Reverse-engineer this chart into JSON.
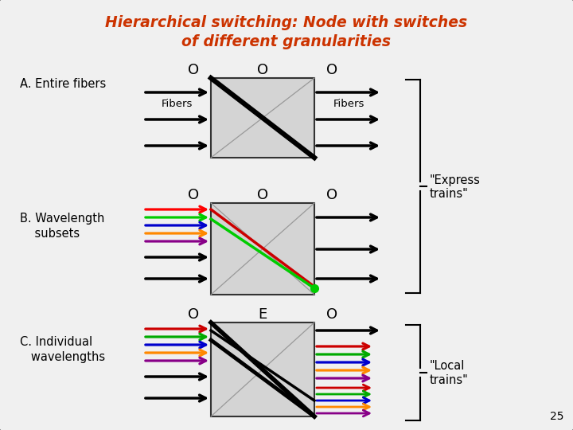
{
  "title_line1": "Hierarchical switching: Node with switches",
  "title_line2": "of different granularities",
  "title_color": "#cc3300",
  "bg_color": "#f0f0f0",
  "border_color": "#444444",
  "box_fill": "#d4d4d4",
  "box_border": "#333333",
  "section_A_label": "A. Entire fibers",
  "section_B_label_1": "B. Wavelength",
  "section_B_label_2": "    subsets",
  "section_C_label_1": "C. Individual",
  "section_C_label_2": "   wavelengths",
  "express_label_1": "\"Express",
  "express_label_2": "trains\"",
  "local_label_1": "\"Local",
  "local_label_2": "trains\"",
  "fiber_label": "Fibers",
  "O_label": "O",
  "E_label": "E",
  "page_num": "25",
  "colors_B_in": [
    "#ff0000",
    "#00cc00",
    "#0000cc",
    "#ff8800",
    "#880088"
  ],
  "colors_C_in": [
    "#cc0000",
    "#00aa00",
    "#0000cc",
    "#ff8800",
    "#880088"
  ],
  "colors_C_out_top": [
    "#cc0000",
    "#00aa00",
    "#0000cc",
    "#ff8800",
    "#880088"
  ],
  "colors_C_out_bot": [
    "#cc0000",
    "#00aa00",
    "#0000cc",
    "#ff8800",
    "#880088"
  ]
}
